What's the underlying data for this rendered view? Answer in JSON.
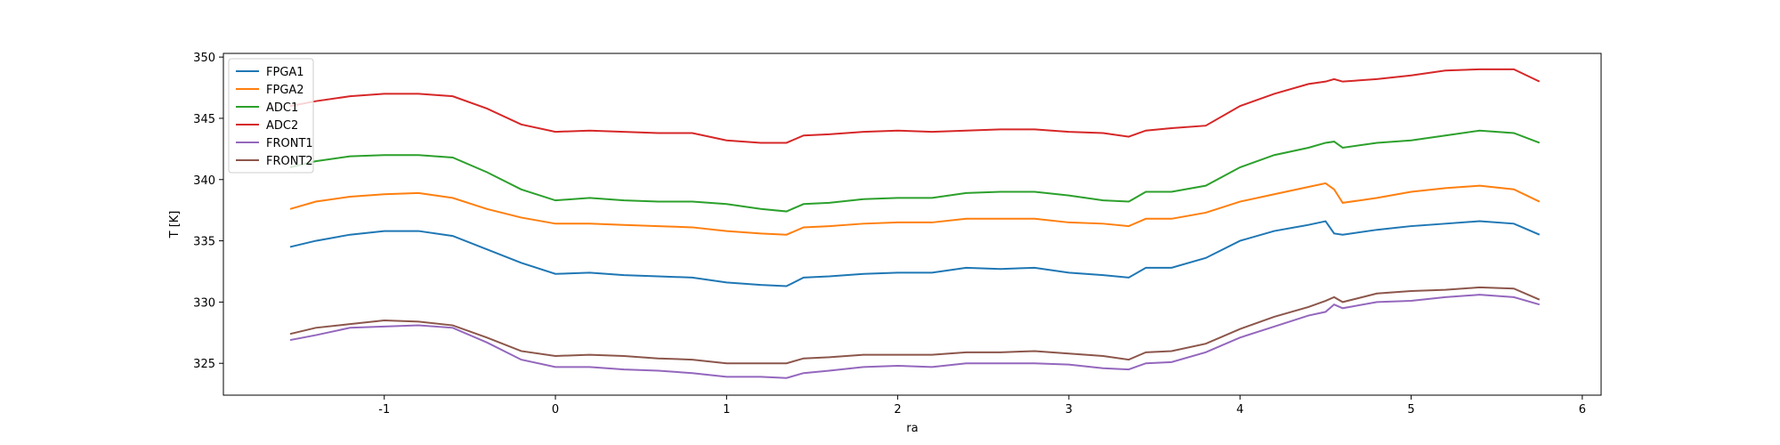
{
  "chart_data": {
    "type": "line",
    "x_label": "ra",
    "y_label": "T [K]",
    "x": [
      -1.55,
      -1.4,
      -1.2,
      -1.0,
      -0.8,
      -0.6,
      -0.4,
      -0.2,
      0,
      0.2,
      0.4,
      0.6,
      0.8,
      1.0,
      1.2,
      1.35,
      1.45,
      1.6,
      1.8,
      2.0,
      2.2,
      2.4,
      2.6,
      2.8,
      3.0,
      3.2,
      3.35,
      3.45,
      3.6,
      3.8,
      4.0,
      4.2,
      4.4,
      4.5,
      4.55,
      4.6,
      4.8,
      5.0,
      5.2,
      5.4,
      5.6,
      5.75
    ],
    "series": [
      {
        "name": "FPGA1",
        "color": "#1f77b4",
        "values": [
          334.5,
          335.0,
          335.5,
          335.8,
          335.8,
          335.4,
          334.3,
          333.2,
          332.3,
          332.4,
          332.2,
          332.1,
          332.0,
          331.6,
          331.4,
          331.3,
          332.0,
          332.1,
          332.3,
          332.4,
          332.4,
          332.8,
          332.7,
          332.8,
          332.4,
          332.2,
          332.0,
          332.8,
          332.8,
          333.6,
          335.0,
          335.8,
          336.3,
          336.6,
          335.6,
          335.5,
          335.9,
          336.2,
          336.4,
          336.6,
          336.4,
          335.5
        ]
      },
      {
        "name": "FPGA2",
        "color": "#ff7f0e",
        "values": [
          337.6,
          338.2,
          338.6,
          338.8,
          338.9,
          338.5,
          337.6,
          336.9,
          336.4,
          336.4,
          336.3,
          336.2,
          336.1,
          335.8,
          335.6,
          335.5,
          336.1,
          336.2,
          336.4,
          336.5,
          336.5,
          336.8,
          336.8,
          336.8,
          336.5,
          336.4,
          336.2,
          336.8,
          336.8,
          337.3,
          338.2,
          338.8,
          339.4,
          339.7,
          339.2,
          338.1,
          338.5,
          339.0,
          339.3,
          339.5,
          339.2,
          338.2
        ]
      },
      {
        "name": "ADC1",
        "color": "#2ca02c",
        "values": [
          341.0,
          341.5,
          341.9,
          342.0,
          342.0,
          341.8,
          340.6,
          339.2,
          338.3,
          338.5,
          338.3,
          338.2,
          338.2,
          338.0,
          337.6,
          337.4,
          338.0,
          338.1,
          338.4,
          338.5,
          338.5,
          338.9,
          339.0,
          339.0,
          338.7,
          338.3,
          338.2,
          339.0,
          339.0,
          339.5,
          341.0,
          342.0,
          342.6,
          343.0,
          343.1,
          342.6,
          343.0,
          343.2,
          343.6,
          344.0,
          343.8,
          343.0
        ]
      },
      {
        "name": "ADC2",
        "color": "#d62728",
        "values": [
          346.0,
          346.4,
          346.8,
          347.0,
          347.0,
          346.8,
          345.8,
          344.5,
          343.9,
          344.0,
          343.9,
          343.8,
          343.8,
          343.2,
          343.0,
          343.0,
          343.6,
          343.7,
          343.9,
          344.0,
          343.9,
          344.0,
          344.1,
          344.1,
          343.9,
          343.8,
          343.5,
          344.0,
          344.2,
          344.4,
          346.0,
          347.0,
          347.8,
          348.0,
          348.2,
          348.0,
          348.2,
          348.5,
          348.9,
          349.0,
          349.0,
          348.0
        ]
      },
      {
        "name": "FRONT1",
        "color": "#9467bd",
        "values": [
          326.9,
          327.3,
          327.9,
          328.0,
          328.1,
          327.9,
          326.7,
          325.3,
          324.7,
          324.7,
          324.5,
          324.4,
          324.2,
          323.9,
          323.9,
          323.8,
          324.2,
          324.4,
          324.7,
          324.8,
          324.7,
          325.0,
          325.0,
          325.0,
          324.9,
          324.6,
          324.5,
          325.0,
          325.1,
          325.9,
          327.1,
          328.0,
          328.9,
          329.2,
          329.8,
          329.5,
          330.0,
          330.1,
          330.4,
          330.6,
          330.4,
          329.8
        ]
      },
      {
        "name": "FRONT2",
        "color": "#8c564b",
        "values": [
          327.4,
          327.9,
          328.2,
          328.5,
          328.4,
          328.1,
          327.1,
          326.0,
          325.6,
          325.7,
          325.6,
          325.4,
          325.3,
          325.0,
          325.0,
          325.0,
          325.4,
          325.5,
          325.7,
          325.7,
          325.7,
          325.9,
          325.9,
          326.0,
          325.8,
          325.6,
          325.3,
          325.9,
          326.0,
          326.6,
          327.8,
          328.8,
          329.6,
          330.1,
          330.4,
          330.0,
          330.7,
          330.9,
          331.0,
          331.2,
          331.1,
          330.2
        ]
      }
    ],
    "xlim": [
      -1.94,
      6.11
    ],
    "ylim": [
      322.4,
      350.3
    ],
    "xticks": [
      -1,
      0,
      1,
      2,
      3,
      4,
      5,
      6
    ],
    "yticks": [
      325,
      330,
      335,
      340,
      345,
      350
    ],
    "legend": "upper left"
  }
}
